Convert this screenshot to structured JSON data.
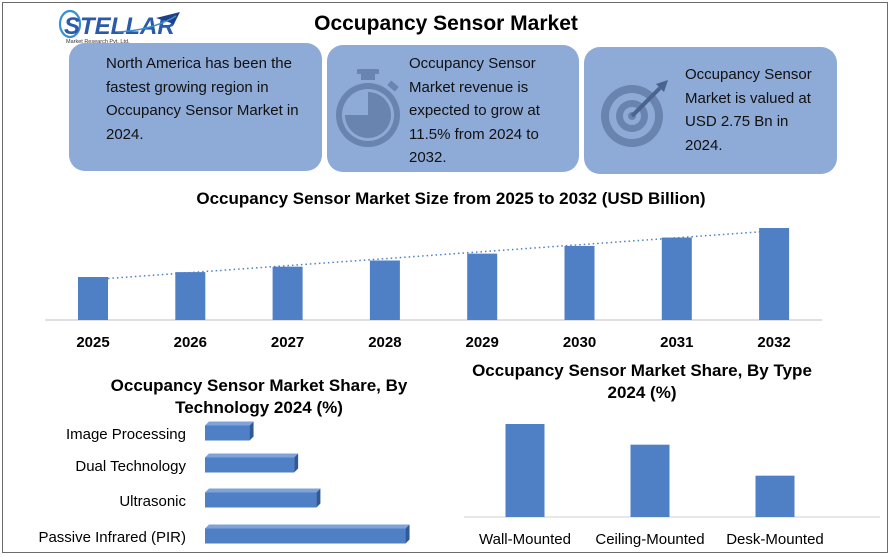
{
  "page": {
    "title": "Occupancy Sensor Market",
    "logo": {
      "brand": "STELLAR",
      "tagline": "Market Research Pvt. Ltd."
    }
  },
  "cards": [
    {
      "text": "North America has been the fastest growing region in Occupancy Sensor Market in 2024.",
      "icon": "none"
    },
    {
      "text": "Occupancy Sensor Market revenue is expected to grow at 11.5% from 2024 to 2032.",
      "icon": "stopwatch-icon"
    },
    {
      "text": "Occupancy Sensor Market is valued at USD 2.75 Bn in 2024.",
      "icon": "target-icon"
    }
  ],
  "colors": {
    "bar": "#4f7fc4",
    "card": "#8eaad6",
    "trend": "#4f7fc4"
  },
  "chart_data": [
    {
      "type": "bar",
      "title": "Occupancy Sensor Market Size from 2025 to 2032 (USD Billion)",
      "categories": [
        "2025",
        "2026",
        "2027",
        "2028",
        "2029",
        "2030",
        "2031",
        "2032"
      ],
      "values": [
        3.07,
        3.42,
        3.81,
        4.25,
        4.74,
        5.29,
        5.89,
        6.57
      ],
      "ylim": [
        0,
        7.0
      ],
      "trendline": "linear, dotted",
      "xlabel": "",
      "ylabel": ""
    },
    {
      "type": "bar",
      "orientation": "horizontal",
      "title": "Occupancy Sensor Market Share, By Technology 2024 (%)",
      "categories": [
        "Image Processing",
        "Dual Technology",
        "Ultrasonic",
        "Passive Infrared (PIR)"
      ],
      "values": [
        10,
        20,
        25,
        45
      ],
      "xlim": [
        0,
        46
      ]
    },
    {
      "type": "bar",
      "title": "Occupancy Sensor Market Share, By Type 2024 (%)",
      "categories": [
        "Wall-Mounted",
        "Ceiling-Mounted",
        "Desk-Mounted"
      ],
      "values": [
        45,
        35,
        20
      ],
      "ylim": [
        0,
        45
      ]
    }
  ]
}
